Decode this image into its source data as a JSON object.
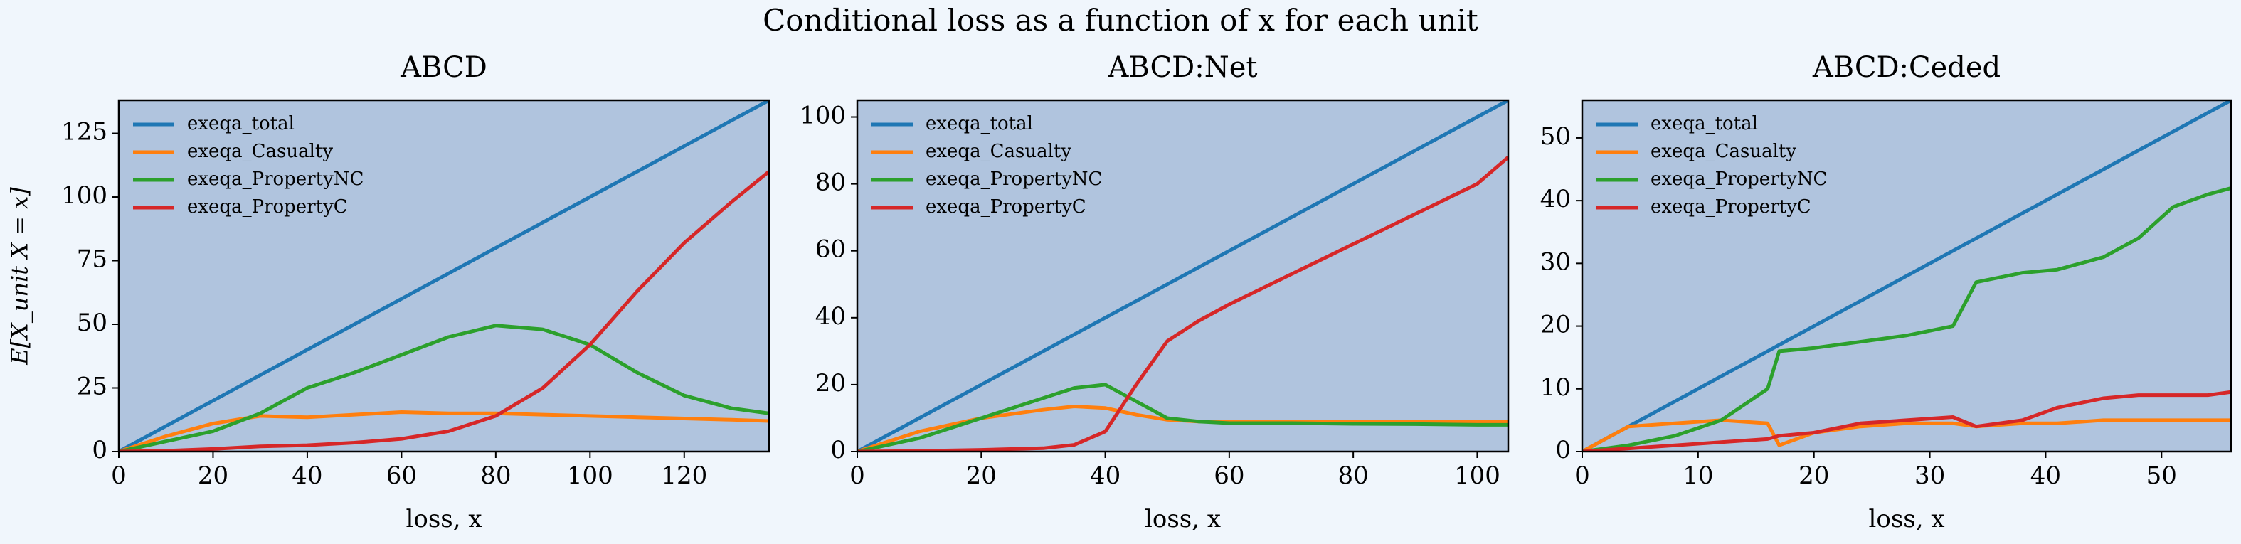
{
  "title": "Conditional loss as a function of x for each unit",
  "chart_data": [
    {
      "type": "line",
      "title": "ABCD",
      "xlabel": "loss, x",
      "ylabel": "E[X_unit X = x]",
      "x": [
        0,
        10,
        20,
        30,
        40,
        50,
        60,
        70,
        80,
        90,
        100,
        110,
        120,
        130,
        138
      ],
      "series": [
        {
          "name": "exeqa_total",
          "color": "#1f77b4",
          "values": [
            0,
            10,
            20,
            30,
            40,
            50,
            60,
            70,
            80,
            90,
            100,
            110,
            120,
            130,
            138
          ]
        },
        {
          "name": "exeqa_Casualty",
          "color": "#ff7f0e",
          "values": [
            0,
            6,
            11,
            14,
            13.5,
            14.5,
            15.5,
            15,
            15,
            14.5,
            14,
            13.5,
            13,
            12.5,
            12
          ]
        },
        {
          "name": "exeqa_PropertyNC",
          "color": "#2ca02c",
          "values": [
            0,
            4,
            8,
            15,
            25,
            31,
            38,
            45,
            49.5,
            48,
            42,
            31,
            22,
            17,
            15
          ]
        },
        {
          "name": "exeqa_PropertyC",
          "color": "#d62728",
          "values": [
            0,
            0.3,
            1,
            2,
            2.5,
            3.5,
            5,
            8,
            14,
            25,
            42,
            63,
            82,
            98,
            110
          ]
        }
      ],
      "xlim": [
        0,
        138
      ],
      "ylim": [
        0,
        138
      ],
      "xticks": [
        0,
        20,
        40,
        60,
        80,
        100,
        120
      ],
      "yticks": [
        0,
        25,
        50,
        75,
        100,
        125
      ],
      "legend": "upper left"
    },
    {
      "type": "line",
      "title": "ABCD:Net",
      "xlabel": "loss, x",
      "x": [
        0,
        10,
        20,
        30,
        35,
        40,
        45,
        50,
        55,
        60,
        70,
        80,
        90,
        100,
        105
      ],
      "series": [
        {
          "name": "exeqa_total",
          "color": "#1f77b4",
          "values": [
            0,
            10,
            20,
            30,
            35,
            40,
            45,
            50,
            55,
            60,
            70,
            80,
            90,
            100,
            105
          ]
        },
        {
          "name": "exeqa_Casualty",
          "color": "#ff7f0e",
          "values": [
            0,
            6,
            10,
            12.5,
            13.5,
            13,
            11,
            9.5,
            9,
            9,
            9,
            9,
            9,
            9,
            9
          ]
        },
        {
          "name": "exeqa_PropertyNC",
          "color": "#2ca02c",
          "values": [
            0,
            4,
            10,
            16,
            19,
            20,
            15,
            10,
            9,
            8.5,
            8.5,
            8.3,
            8.2,
            8,
            8
          ]
        },
        {
          "name": "exeqa_PropertyC",
          "color": "#d62728",
          "values": [
            0,
            0.2,
            0.5,
            1,
            2,
            6,
            20,
            33,
            39,
            44,
            53,
            62,
            71,
            80,
            88
          ]
        }
      ],
      "xlim": [
        0,
        105
      ],
      "ylim": [
        0,
        105
      ],
      "xticks": [
        0,
        20,
        40,
        60,
        80,
        100
      ],
      "yticks": [
        0,
        20,
        40,
        60,
        80,
        100
      ],
      "legend": "upper left"
    },
    {
      "type": "line",
      "title": "ABCD:Ceded",
      "xlabel": "loss, x",
      "x": [
        0,
        4,
        8,
        12,
        16,
        17,
        20,
        24,
        28,
        32,
        34,
        38,
        41,
        45,
        48,
        51,
        54,
        56
      ],
      "series": [
        {
          "name": "exeqa_total",
          "color": "#1f77b4",
          "values": [
            0,
            4,
            8,
            12,
            16,
            17,
            20,
            24,
            28,
            32,
            34,
            38,
            41,
            45,
            48,
            51,
            54,
            56
          ]
        },
        {
          "name": "exeqa_Casualty",
          "color": "#ff7f0e",
          "values": [
            0,
            4,
            4.5,
            5,
            4.5,
            1,
            3,
            4,
            4.5,
            4.5,
            4,
            4.5,
            4.5,
            5,
            5,
            5,
            5,
            5
          ]
        },
        {
          "name": "exeqa_PropertyNC",
          "color": "#2ca02c",
          "values": [
            0,
            1,
            2.5,
            5,
            10,
            16,
            16.5,
            17.5,
            18.5,
            20,
            27,
            28.5,
            29,
            31,
            34,
            39,
            41,
            42
          ]
        },
        {
          "name": "exeqa_PropertyC",
          "color": "#d62728",
          "values": [
            0,
            0.5,
            1,
            1.5,
            2,
            2.5,
            3,
            4.5,
            5,
            5.5,
            4,
            5,
            7,
            8.5,
            9,
            9,
            9,
            9.5
          ]
        }
      ],
      "xlim": [
        0,
        56
      ],
      "ylim": [
        0,
        56
      ],
      "xticks": [
        0,
        10,
        20,
        30,
        40,
        50
      ],
      "yticks": [
        0,
        10,
        20,
        30,
        40,
        50
      ],
      "legend": "upper left"
    }
  ]
}
